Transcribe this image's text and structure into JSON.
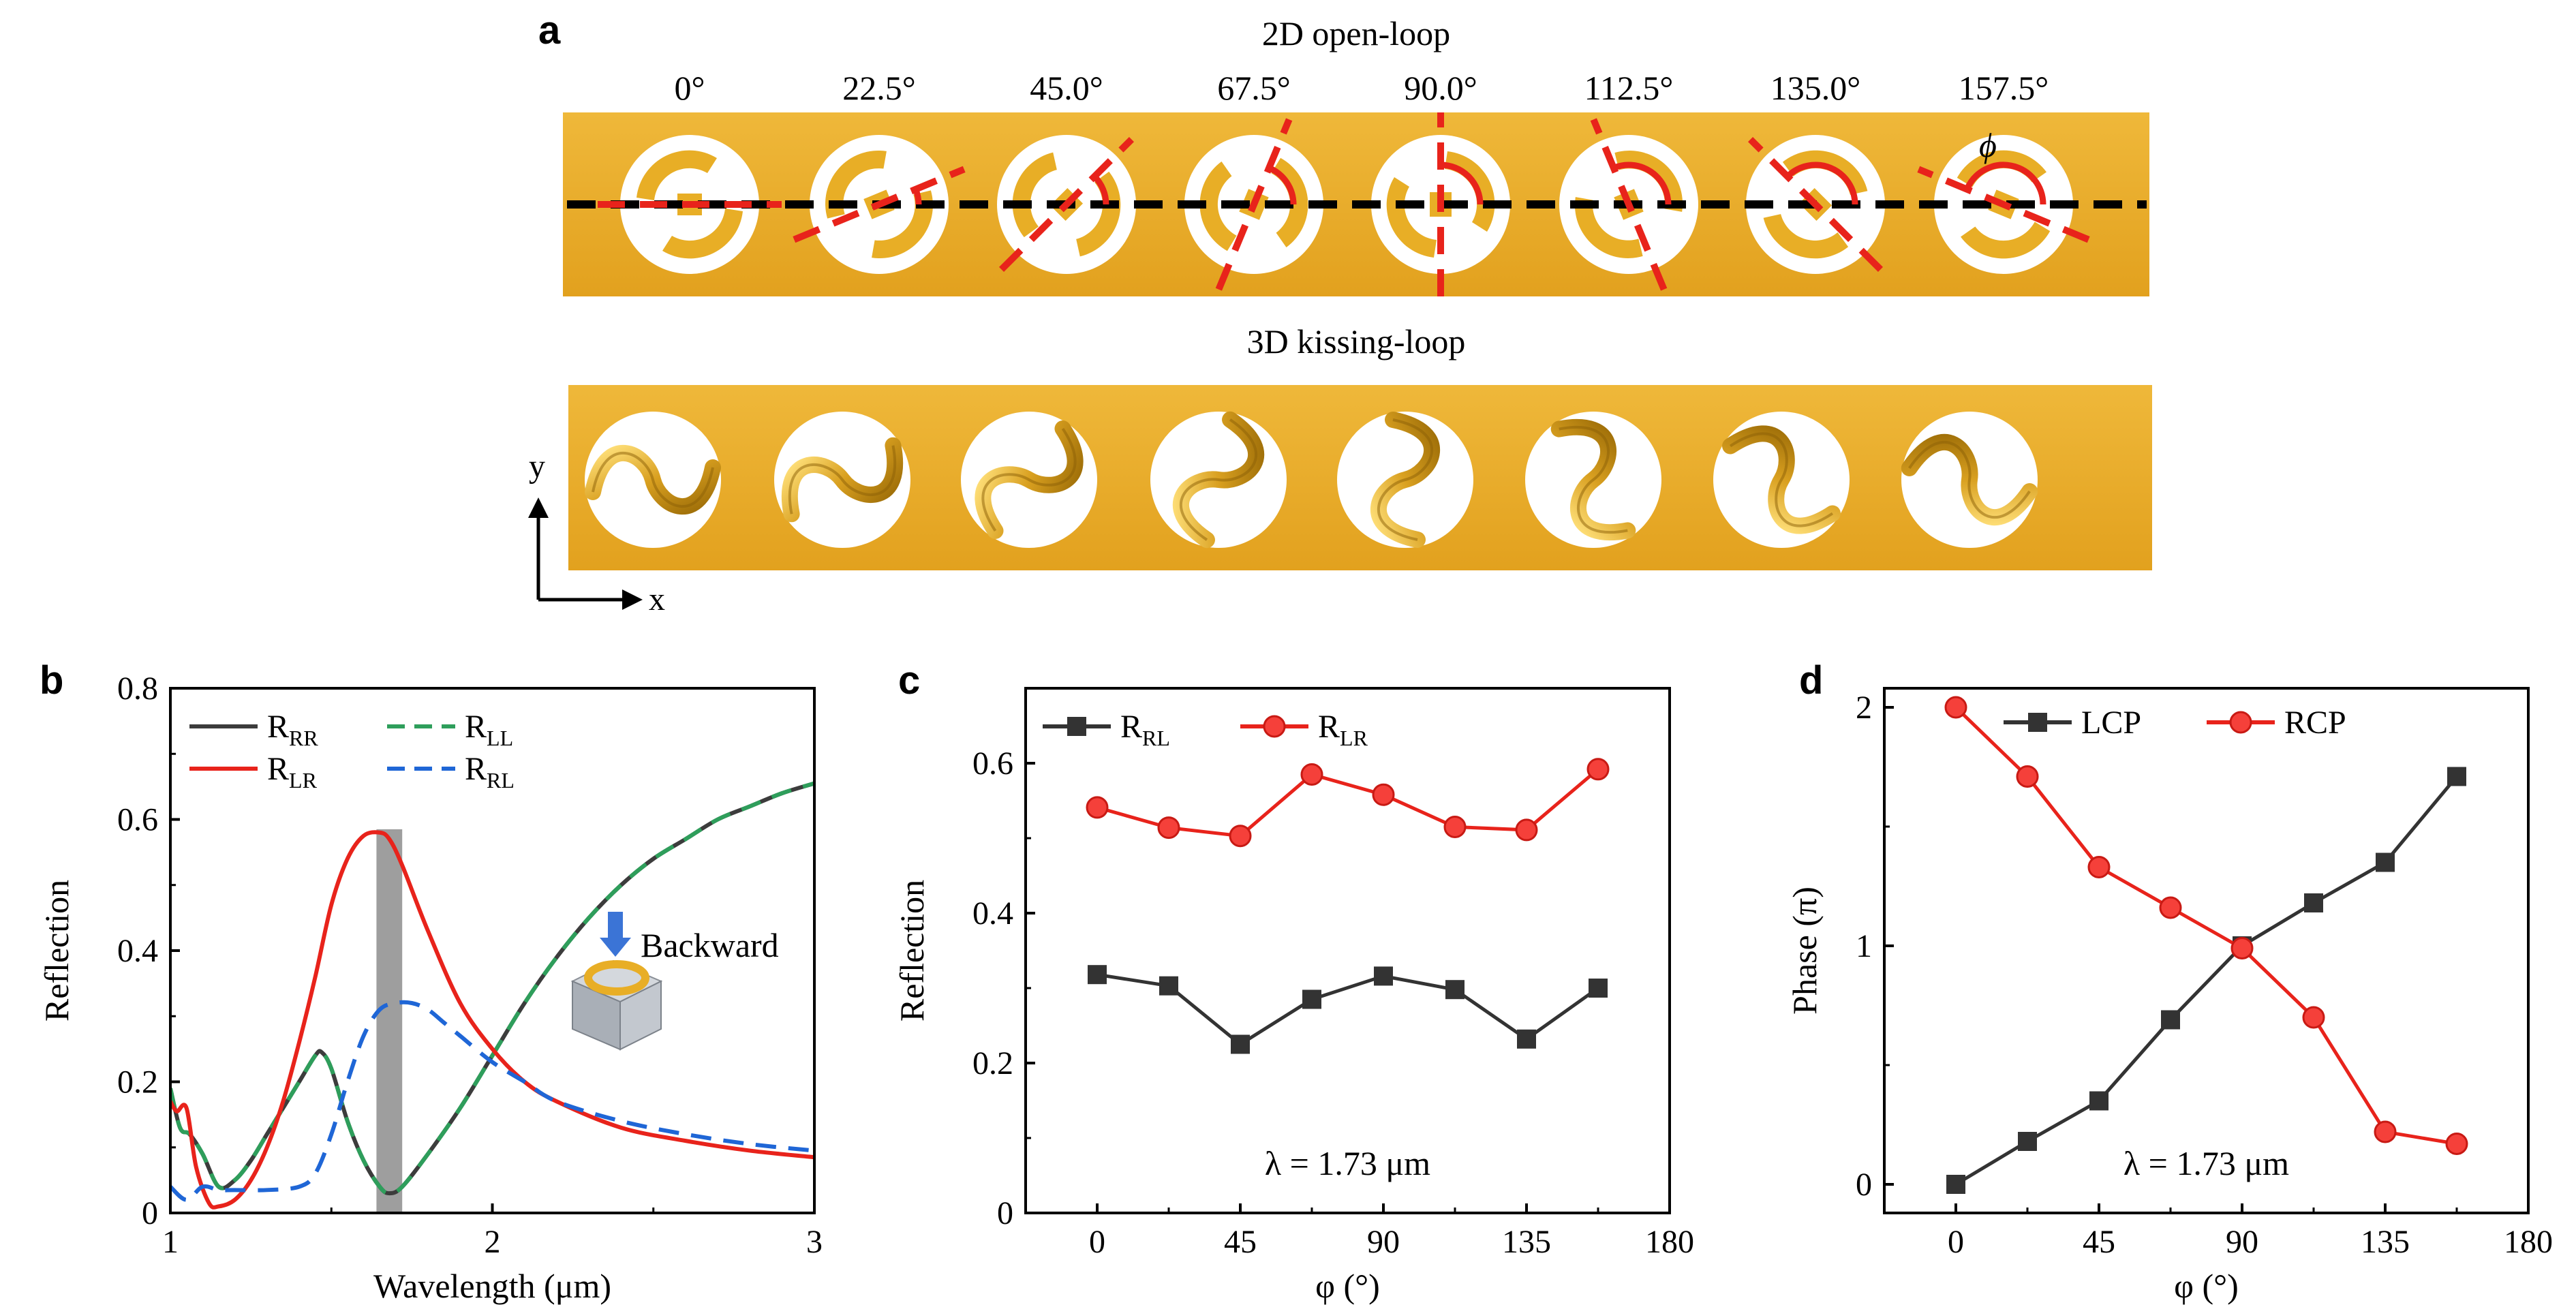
{
  "panel_a": {
    "label": "a",
    "open_loop_title": "2D open-loop",
    "kissing_loop_title": "3D kissing-loop",
    "angles": [
      "0°",
      "22.5°",
      "45.0°",
      "67.5°",
      "90.0°",
      "112.5°",
      "135.0°",
      "157.5°"
    ],
    "rotation_degrees": [
      0,
      22.5,
      45,
      67.5,
      90,
      112.5,
      135,
      157.5
    ],
    "phi_label": "ϕ",
    "axis_y": "y",
    "axis_x": "x",
    "colors": {
      "gold": "#E8AE26",
      "gold_dark": "#C08A10",
      "red_dash": "#E8231B",
      "black_dash": "#000000"
    }
  },
  "chart_data": [
    {
      "panel": "b",
      "type": "line",
      "xlabel": "Wavelength (μm)",
      "ylabel": "Reflection",
      "xlim": [
        1,
        3
      ],
      "ylim": [
        0,
        0.8
      ],
      "xticks": [
        1,
        2,
        3
      ],
      "yticks": [
        0,
        0.2,
        0.4,
        0.6,
        0.8
      ],
      "ytick_labels": [
        "0",
        "0.2",
        "0.4",
        "0.6",
        "0.8"
      ],
      "highlight_band": [
        1.64,
        1.72
      ],
      "inset_label": "Backward",
      "legend": [
        {
          "base": "R",
          "sub": "RR",
          "color": "#3C3C3C",
          "dash": "solid"
        },
        {
          "base": "R",
          "sub": "LL",
          "color": "#2E9E5B",
          "dash": "dashed"
        },
        {
          "base": "R",
          "sub": "LR",
          "color": "#E8231B",
          "dash": "solid"
        },
        {
          "base": "R",
          "sub": "RL",
          "color": "#1F66D6",
          "dash": "dashed"
        }
      ],
      "series": [
        {
          "name": "RRR",
          "color": "#3C3C3C",
          "x": [
            1.0,
            1.03,
            1.06,
            1.1,
            1.15,
            1.2,
            1.25,
            1.3,
            1.35,
            1.4,
            1.45,
            1.47,
            1.5,
            1.55,
            1.6,
            1.65,
            1.68,
            1.72,
            1.8,
            1.9,
            2.0,
            2.1,
            2.2,
            2.3,
            2.4,
            2.5,
            2.6,
            2.7,
            2.8,
            2.9,
            3.0
          ],
          "values": [
            0.19,
            0.13,
            0.12,
            0.09,
            0.04,
            0.05,
            0.08,
            0.12,
            0.16,
            0.2,
            0.24,
            0.245,
            0.22,
            0.14,
            0.08,
            0.04,
            0.03,
            0.04,
            0.09,
            0.16,
            0.24,
            0.32,
            0.39,
            0.45,
            0.5,
            0.54,
            0.57,
            0.6,
            0.62,
            0.64,
            0.655
          ]
        },
        {
          "name": "RLL",
          "color": "#2E9E5B",
          "x": [
            1.0,
            1.03,
            1.06,
            1.1,
            1.15,
            1.2,
            1.25,
            1.3,
            1.35,
            1.4,
            1.45,
            1.47,
            1.5,
            1.55,
            1.6,
            1.65,
            1.68,
            1.72,
            1.8,
            1.9,
            2.0,
            2.1,
            2.2,
            2.3,
            2.4,
            2.5,
            2.6,
            2.7,
            2.8,
            2.9,
            3.0
          ],
          "values": [
            0.19,
            0.13,
            0.12,
            0.09,
            0.04,
            0.05,
            0.08,
            0.12,
            0.16,
            0.2,
            0.24,
            0.245,
            0.22,
            0.14,
            0.08,
            0.04,
            0.03,
            0.04,
            0.09,
            0.16,
            0.24,
            0.32,
            0.39,
            0.45,
            0.5,
            0.54,
            0.57,
            0.6,
            0.62,
            0.64,
            0.655
          ]
        },
        {
          "name": "RLR",
          "color": "#E8231B",
          "x": [
            1.0,
            1.02,
            1.05,
            1.08,
            1.12,
            1.15,
            1.2,
            1.25,
            1.3,
            1.35,
            1.4,
            1.45,
            1.5,
            1.55,
            1.6,
            1.65,
            1.68,
            1.72,
            1.8,
            1.9,
            2.0,
            2.1,
            2.2,
            2.4,
            2.6,
            2.8,
            3.0
          ],
          "values": [
            0.17,
            0.155,
            0.16,
            0.07,
            0.015,
            0.01,
            0.02,
            0.05,
            0.1,
            0.17,
            0.26,
            0.36,
            0.47,
            0.54,
            0.575,
            0.58,
            0.57,
            0.53,
            0.43,
            0.32,
            0.25,
            0.2,
            0.17,
            0.13,
            0.11,
            0.095,
            0.085
          ]
        },
        {
          "name": "RRL",
          "color": "#1F66D6",
          "x": [
            1.0,
            1.05,
            1.1,
            1.15,
            1.2,
            1.3,
            1.4,
            1.45,
            1.5,
            1.55,
            1.6,
            1.65,
            1.7,
            1.75,
            1.8,
            1.85,
            1.9,
            2.0,
            2.1,
            2.2,
            2.4,
            2.6,
            2.8,
            3.0
          ],
          "values": [
            0.04,
            0.02,
            0.04,
            0.035,
            0.035,
            0.035,
            0.04,
            0.06,
            0.12,
            0.2,
            0.27,
            0.31,
            0.32,
            0.32,
            0.31,
            0.29,
            0.27,
            0.23,
            0.2,
            0.17,
            0.14,
            0.12,
            0.105,
            0.095
          ]
        }
      ]
    },
    {
      "panel": "c",
      "type": "line",
      "xlabel": "φ (°)",
      "ylabel": "Reflection",
      "xlim": [
        -22.5,
        180
      ],
      "ylim": [
        0,
        0.7
      ],
      "xticks": [
        0,
        45,
        90,
        135,
        180
      ],
      "yticks": [
        0,
        0.2,
        0.4,
        0.6
      ],
      "ytick_labels": [
        "0",
        "0.2",
        "0.4",
        "0.6"
      ],
      "annotation": "λ = 1.73 μm",
      "legend": [
        {
          "base": "R",
          "sub": "RL",
          "color": "#333333",
          "marker": "square"
        },
        {
          "base": "R",
          "sub": "LR",
          "color": "#E8231B",
          "marker": "circle"
        }
      ],
      "x": [
        0,
        22.5,
        45,
        67.5,
        90,
        112.5,
        135,
        157.5
      ],
      "series": [
        {
          "name": "RRL",
          "color": "#333333",
          "marker": "square",
          "values": [
            0.318,
            0.303,
            0.225,
            0.285,
            0.316,
            0.298,
            0.232,
            0.3
          ]
        },
        {
          "name": "RLR",
          "color": "#E8231B",
          "marker": "circle",
          "values": [
            0.541,
            0.514,
            0.503,
            0.585,
            0.558,
            0.515,
            0.511,
            0.592
          ]
        }
      ]
    },
    {
      "panel": "d",
      "type": "line",
      "xlabel": "φ (°)",
      "ylabel": "Phase (π)",
      "xlim": [
        -22.5,
        180
      ],
      "ylim": [
        -0.12,
        2.08
      ],
      "xticks": [
        0,
        45,
        90,
        135,
        180
      ],
      "yticks": [
        0,
        1,
        2
      ],
      "ytick_labels": [
        "0",
        "1",
        "2"
      ],
      "annotation": "λ = 1.73 μm",
      "legend": [
        {
          "base": "LCP",
          "sub": "",
          "color": "#333333",
          "marker": "square"
        },
        {
          "base": "RCP",
          "sub": "",
          "color": "#E8231B",
          "marker": "circle"
        }
      ],
      "x": [
        0,
        22.5,
        45,
        67.5,
        90,
        112.5,
        135,
        157.5
      ],
      "series": [
        {
          "name": "LCP",
          "color": "#333333",
          "marker": "square",
          "values": [
            0.0,
            0.18,
            0.35,
            0.69,
            1.0,
            1.18,
            1.35,
            1.71
          ]
        },
        {
          "name": "RCP",
          "color": "#E8231B",
          "marker": "circle",
          "values": [
            2.0,
            1.71,
            1.33,
            1.16,
            0.99,
            0.7,
            0.22,
            0.17
          ]
        }
      ]
    }
  ],
  "panel_labels": [
    "b",
    "c",
    "d"
  ]
}
